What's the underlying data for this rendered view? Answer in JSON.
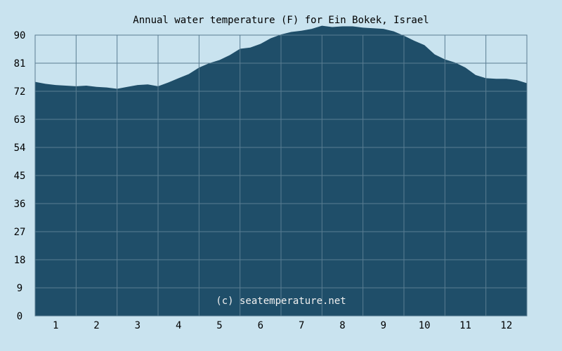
{
  "chart_data": {
    "type": "area",
    "title": "Annual water temperature (F) for Ein Bokek, Israel",
    "xlabel": "",
    "ylabel": "",
    "x_ticks": [
      "1",
      "2",
      "3",
      "4",
      "5",
      "6",
      "7",
      "8",
      "9",
      "10",
      "11",
      "12"
    ],
    "y_ticks": [
      "0",
      "9",
      "18",
      "27",
      "36",
      "45",
      "54",
      "63",
      "72",
      "81",
      "90"
    ],
    "ylim": [
      0,
      90
    ],
    "xlim": [
      0.5,
      12.5
    ],
    "grid": true,
    "watermark": "(c) seatemperature.net",
    "series": [
      {
        "x": [
          0.5,
          0.75,
          1.0,
          1.25,
          1.5,
          1.75,
          2.0,
          2.25,
          2.5,
          2.75,
          3.0,
          3.25,
          3.5,
          3.75,
          4.0,
          4.25,
          4.5,
          4.75,
          5.0,
          5.25,
          5.5,
          5.75,
          6.0,
          6.25,
          6.5,
          6.75,
          7.0,
          7.25,
          7.5,
          7.75,
          8.0,
          8.25,
          8.5,
          8.75,
          9.0,
          9.25,
          9.5,
          9.75,
          10.0,
          10.25,
          10.5,
          10.75,
          11.0,
          11.25,
          11.5,
          11.75,
          12.0,
          12.25,
          12.5
        ],
        "values": [
          75.0,
          74.4,
          74.0,
          73.8,
          73.6,
          73.8,
          73.4,
          73.2,
          72.8,
          73.4,
          74.0,
          74.2,
          73.6,
          74.8,
          76.2,
          77.5,
          79.6,
          81.0,
          82.0,
          83.6,
          85.6,
          86.0,
          87.2,
          89.0,
          90.2,
          91.0,
          91.4,
          92.0,
          93.0,
          92.6,
          92.8,
          92.8,
          92.4,
          92.2,
          92.0,
          91.2,
          89.8,
          88.2,
          86.8,
          83.8,
          82.2,
          81.2,
          79.6,
          77.2,
          76.2,
          76.0,
          76.0,
          75.6,
          74.6
        ],
        "color": "#1f4e69"
      }
    ],
    "colors": {
      "background": "#c9e3ef",
      "plot_background": "#c9e3ef",
      "area_fill": "#1f4e69",
      "grid": "#5a7d92",
      "watermark": "#f0f0f0"
    }
  }
}
